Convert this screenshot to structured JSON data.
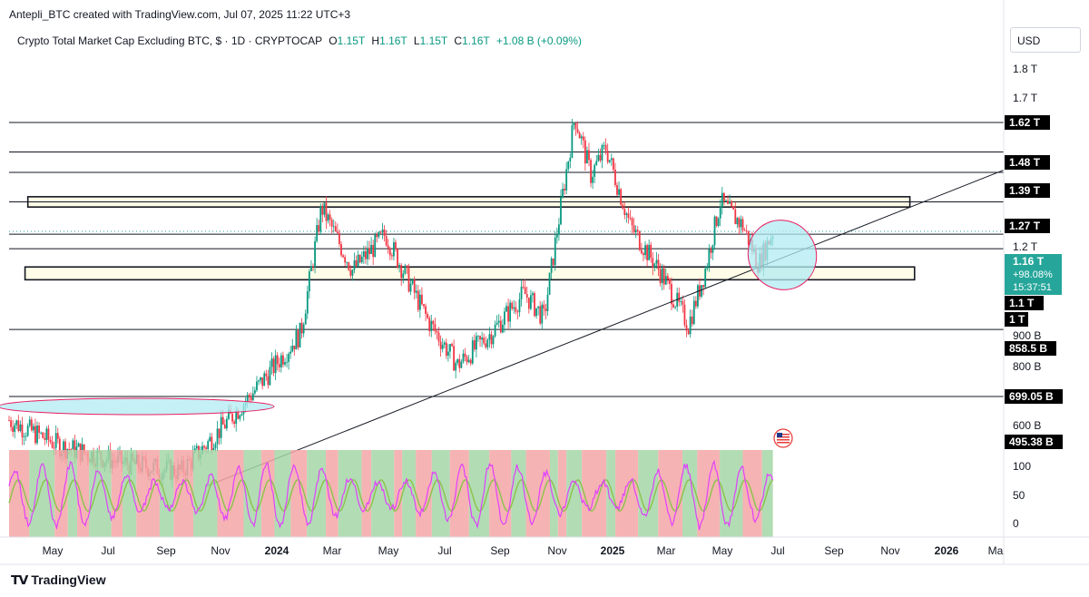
{
  "header": {
    "author_line": "Antepli_BTC created with TradingView.com, Jul 07, 2025 11:22 UTC+3"
  },
  "legend": {
    "symbol": "Crypto Total Market Cap Excluding BTC, $ · 1D · CRYPTOCAP",
    "open_label": "O",
    "open_value": "1.15T",
    "high_label": "H",
    "high_value": "1.16T",
    "low_label": "L",
    "low_value": "1.15T",
    "close_label": "C",
    "close_value": "1.16T",
    "change": "+1.08 B (+0.09%)",
    "change_color": "#089981"
  },
  "price_scale": {
    "currency": "USD",
    "ticks": [
      "1.8 T",
      "1.7 T",
      "1.2 T",
      "900 B",
      "800 B",
      "600 B"
    ],
    "indicator_ticks": [
      "100",
      "50",
      "0"
    ]
  },
  "level_tags": [
    {
      "label": "1.62 T"
    },
    {
      "label": "1.48 T"
    },
    {
      "label": "1.39 T"
    },
    {
      "label": "1.27 T"
    },
    {
      "label": "1.1 T"
    },
    {
      "label": "1 T"
    },
    {
      "label": "858.5 B"
    },
    {
      "label": "699.05 B"
    },
    {
      "label": "495.38 B"
    }
  ],
  "price_tag": {
    "price": "1.16 T",
    "change": "+98.08%",
    "countdown": "15:37:51",
    "color": "#26a69a"
  },
  "time_axis": [
    "May",
    "Jul",
    "Sep",
    "Nov",
    "2024",
    "Mar",
    "May",
    "Jul",
    "Sep",
    "Nov",
    "2025",
    "Mar",
    "May",
    "Jul",
    "Sep",
    "Nov",
    "2026",
    "Ma"
  ],
  "branding": "TradingView",
  "colors": {
    "up": "#089981",
    "down": "#f23645",
    "zone_fill": "#fffde7",
    "ellipse_fill": "#b2ebf2",
    "ellipse_stroke": "#e91e63",
    "rsi_line": "#e040fb",
    "signal_line": "#8bc34a",
    "bg_red": "#f4a6a6",
    "bg_green": "#a5d6a7"
  },
  "chart_data": {
    "type": "candlestick",
    "title": "Crypto Total Market Cap Excluding BTC, $ · 1D · CRYPTOCAP",
    "x_range": [
      "2023-04-15",
      "2026-03-10"
    ],
    "y_scale": "log",
    "ylim": [
      560000000000,
      1900000000000
    ],
    "horizontal_levels": [
      1620000000000,
      1480000000000,
      1390000000000,
      1270000000000,
      1150000000000,
      1100000000000,
      858500000000,
      699050000000
    ],
    "zones": [
      {
        "from": "2023-05-05",
        "to": "2025-11-30",
        "low": 1250000000000,
        "high": 1290000000000
      },
      {
        "from": "2023-05-02",
        "to": "2025-12-05",
        "low": 1000000000000,
        "high": 1040000000000
      }
    ],
    "trendline": [
      {
        "date": "2023-11-10",
        "value": 530000000000
      },
      {
        "date": "2026-03-10",
        "value": 1400000000000
      }
    ],
    "anchors": [
      {
        "date": "2023-04-15",
        "value": 650000000000
      },
      {
        "date": "2023-06-10",
        "value": 600000000000
      },
      {
        "date": "2023-08-15",
        "value": 570000000000
      },
      {
        "date": "2023-10-15",
        "value": 555000000000
      },
      {
        "date": "2023-11-20",
        "value": 620000000000
      },
      {
        "date": "2024-01-01",
        "value": 710000000000
      },
      {
        "date": "2024-02-20",
        "value": 850000000000
      },
      {
        "date": "2024-03-13",
        "value": 1250000000000
      },
      {
        "date": "2024-04-15",
        "value": 1030000000000
      },
      {
        "date": "2024-05-20",
        "value": 1150000000000
      },
      {
        "date": "2024-07-05",
        "value": 880000000000
      },
      {
        "date": "2024-08-05",
        "value": 770000000000
      },
      {
        "date": "2024-09-10",
        "value": 850000000000
      },
      {
        "date": "2024-10-15",
        "value": 960000000000
      },
      {
        "date": "2024-11-05",
        "value": 890000000000
      },
      {
        "date": "2024-11-25",
        "value": 1300000000000
      },
      {
        "date": "2024-12-08",
        "value": 1650000000000
      },
      {
        "date": "2024-12-25",
        "value": 1380000000000
      },
      {
        "date": "2025-01-10",
        "value": 1500000000000
      },
      {
        "date": "2025-02-05",
        "value": 1180000000000
      },
      {
        "date": "2025-03-10",
        "value": 1020000000000
      },
      {
        "date": "2025-04-08",
        "value": 870000000000
      },
      {
        "date": "2025-04-25",
        "value": 1020000000000
      },
      {
        "date": "2025-05-12",
        "value": 1270000000000
      },
      {
        "date": "2025-06-05",
        "value": 1180000000000
      },
      {
        "date": "2025-06-22",
        "value": 1050000000000
      },
      {
        "date": "2025-07-07",
        "value": 1160000000000
      }
    ],
    "indicator": {
      "type": "oscillator",
      "ylim": [
        0,
        100
      ],
      "levels": [
        0,
        50,
        100
      ]
    }
  }
}
